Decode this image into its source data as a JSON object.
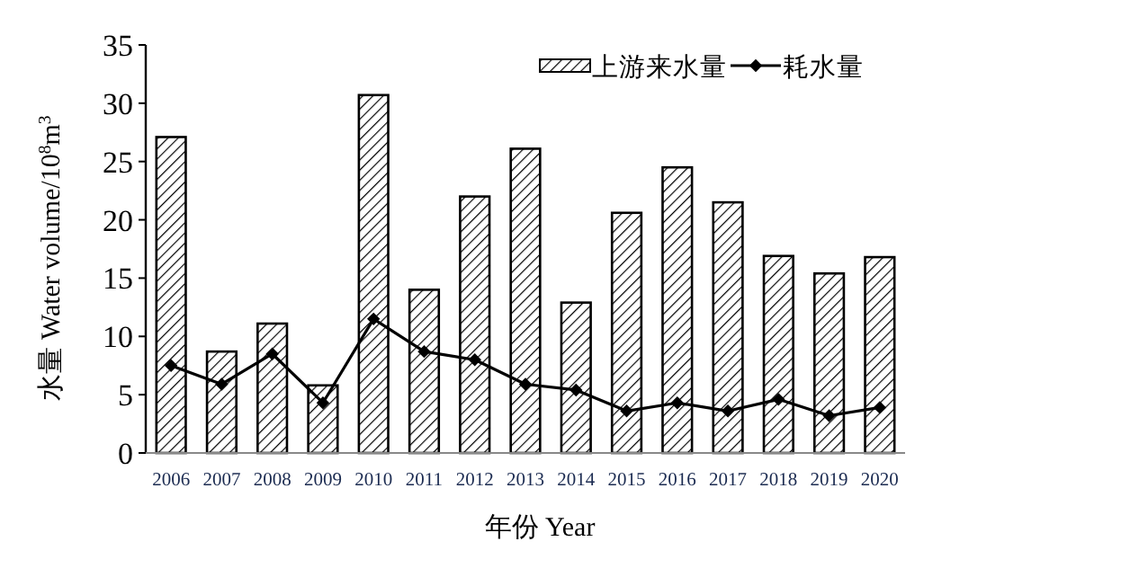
{
  "chart_data": {
    "type": "bar",
    "categories": [
      "2006",
      "2007",
      "2008",
      "2009",
      "2010",
      "2011",
      "2012",
      "2013",
      "2014",
      "2015",
      "2016",
      "2017",
      "2018",
      "2019",
      "2020"
    ],
    "series": [
      {
        "name": "上游来水量",
        "color": "#000000",
        "values": [
          27.1,
          8.7,
          11.1,
          5.8,
          30.7,
          14.0,
          22.0,
          26.1,
          12.9,
          20.6,
          24.5,
          21.5,
          16.9,
          15.4,
          16.8
        ]
      },
      {
        "name": "耗水量",
        "type": "line",
        "color": "#000000",
        "marker": "diamond",
        "values": [
          7.5,
          5.9,
          8.5,
          4.3,
          11.5,
          8.7,
          8.0,
          5.9,
          5.4,
          3.6,
          4.3,
          3.6,
          4.6,
          3.2,
          3.9
        ]
      }
    ],
    "ylim": [
      0,
      35
    ],
    "yticks": [
      0,
      5,
      10,
      15,
      20,
      25,
      30,
      35
    ],
    "xlabel": "年份  Year",
    "ylabel": "水量  Water volume/10$^{8}$m$^{3}$",
    "legend": "top right"
  }
}
